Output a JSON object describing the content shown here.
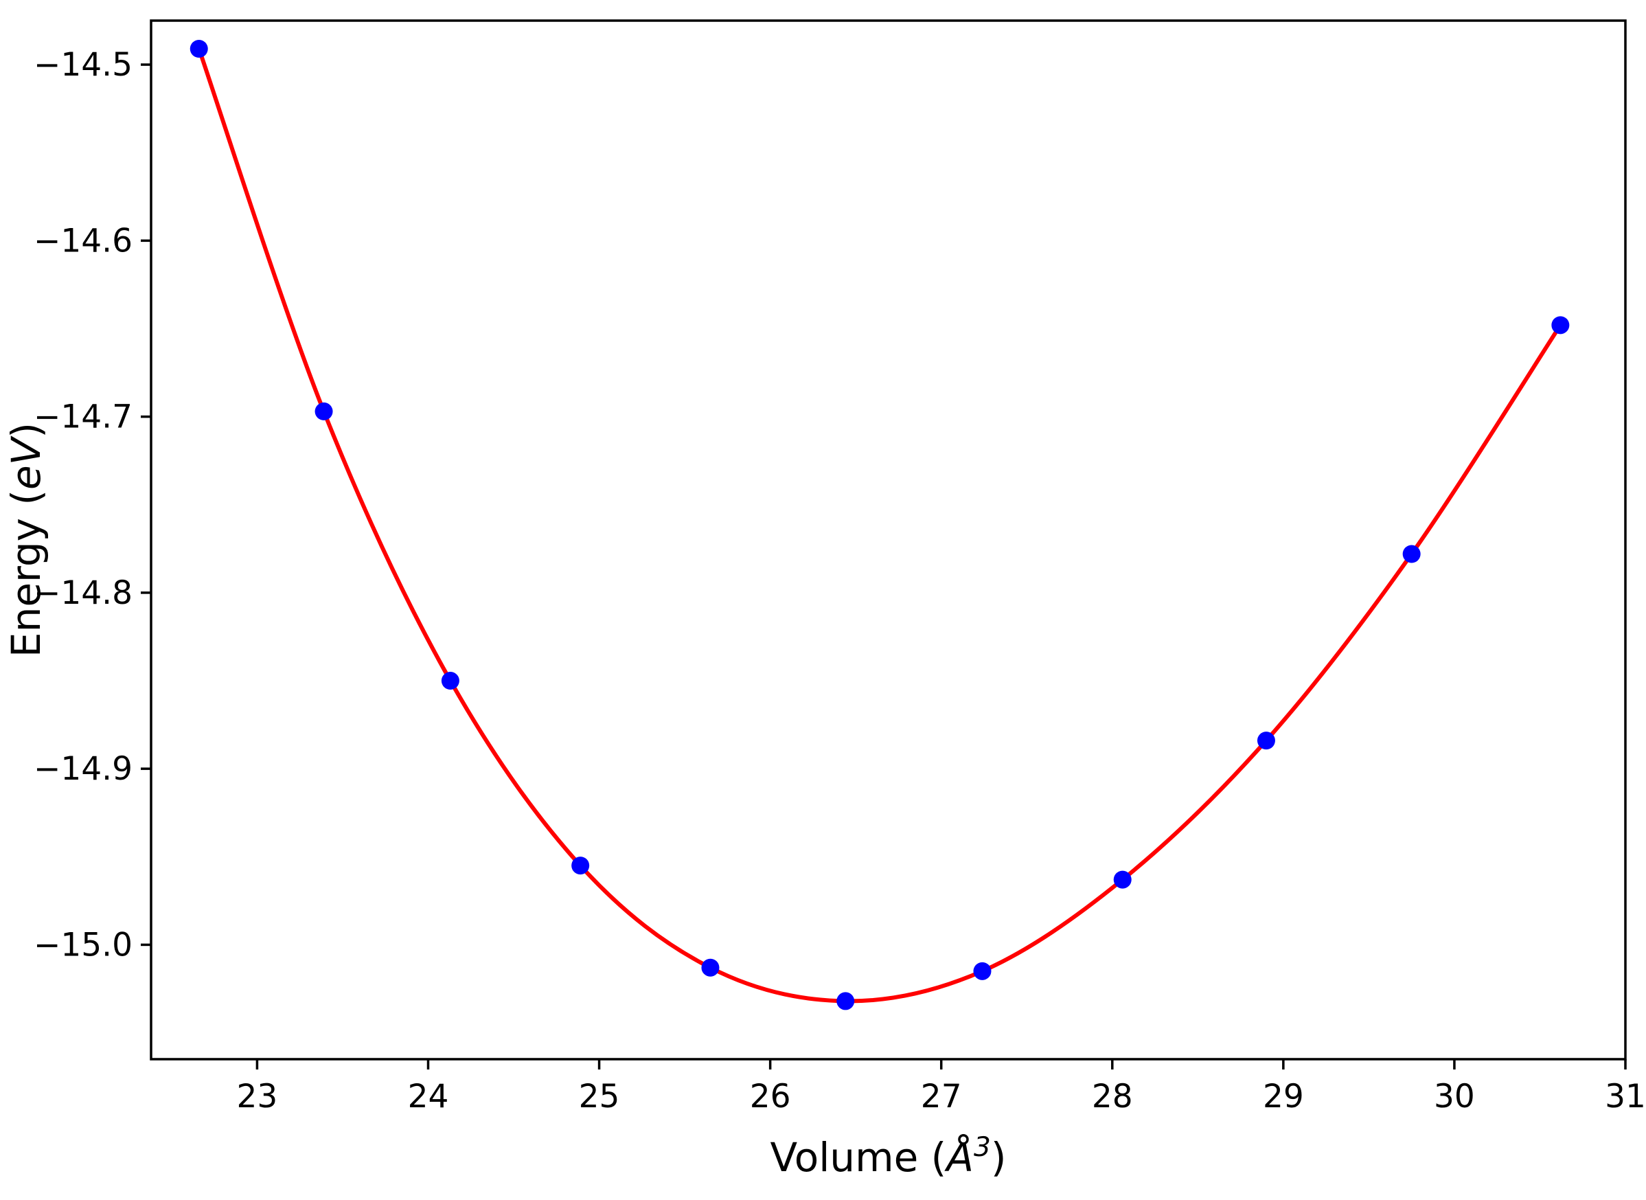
{
  "figure": {
    "background": "#ffffff",
    "frame_color": "#000000",
    "frame_width": 3.5,
    "tick_length": 15,
    "tick_width": 3.5,
    "tick_font_size": 47,
    "label_font_size": 58
  },
  "chart_data": {
    "type": "scatter",
    "title": "",
    "xlabel": {
      "prefix": "Volume (",
      "math": "Å",
      "sup": "3",
      "suffix": ")"
    },
    "ylabel": {
      "prefix": "Energy (",
      "math": "eV",
      "suffix": ")"
    },
    "xlim": [
      22.38,
      31.0
    ],
    "ylim": [
      -15.065,
      -14.475
    ],
    "xticks": [
      23,
      24,
      25,
      26,
      27,
      28,
      29,
      30,
      31
    ],
    "yticks": [
      -14.5,
      -14.6,
      -14.7,
      -14.8,
      -14.9,
      -15.0
    ],
    "grid": false,
    "legend_position": "none",
    "series": [
      {
        "name": "energy-volume-data",
        "marker": "circle",
        "marker_color": "#0000ff",
        "marker_radius": 13,
        "fit_line": true,
        "fit_line_color": "#ff0000",
        "fit_line_width": 6,
        "x": [
          22.66,
          23.39,
          24.13,
          24.89,
          25.65,
          26.44,
          27.24,
          28.06,
          28.9,
          29.75,
          30.62
        ],
        "y": [
          -14.491,
          -14.697,
          -14.85,
          -14.955,
          -15.013,
          -15.032,
          -15.015,
          -14.963,
          -14.884,
          -14.778,
          -14.648
        ]
      }
    ]
  }
}
